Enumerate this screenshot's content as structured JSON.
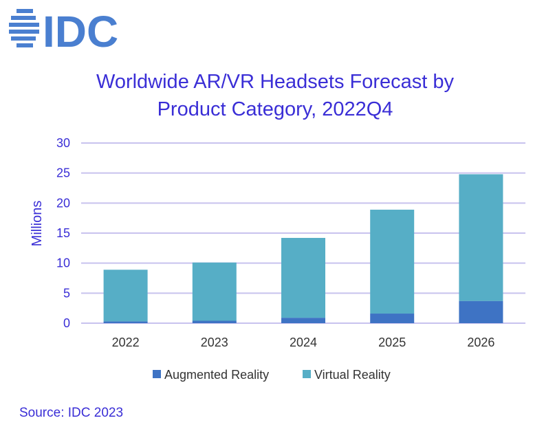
{
  "logo": {
    "text": "IDC",
    "color": "#4a7fd0"
  },
  "chart_data": {
    "type": "bar",
    "stacked": true,
    "title_lines": [
      "Worldwide AR/VR Headsets Forecast by",
      "Product Category, 2022Q4"
    ],
    "xlabel": "",
    "ylabel": "Millions",
    "categories": [
      "2022",
      "2023",
      "2024",
      "2025",
      "2026"
    ],
    "series": [
      {
        "name": "Augmented Reality",
        "color": "#3e73c4",
        "values": [
          0.3,
          0.4,
          0.9,
          1.6,
          3.7
        ]
      },
      {
        "name": "Virtual Reality",
        "color": "#56aec6",
        "values": [
          8.6,
          9.7,
          13.3,
          17.3,
          21.1
        ]
      }
    ],
    "ylim": [
      0,
      30
    ],
    "yticks": [
      "0",
      "5",
      "10",
      "15",
      "20",
      "25",
      "30"
    ],
    "grid": true,
    "legend": "bottom"
  },
  "source": "Source: IDC 2023"
}
